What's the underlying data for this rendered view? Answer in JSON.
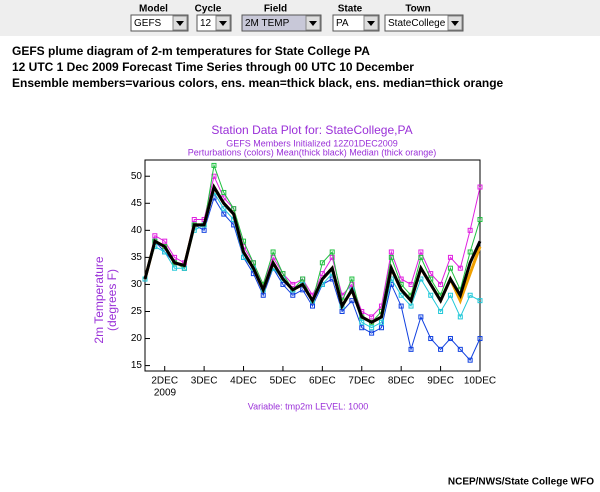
{
  "controls": [
    {
      "label": "Model",
      "value": "GEFS"
    },
    {
      "label": "Cycle",
      "value": "12"
    },
    {
      "label": "Field",
      "value": "2M TEMP"
    },
    {
      "label": "State",
      "value": "PA"
    },
    {
      "label": "Town",
      "value": "StateCollege"
    }
  ],
  "heading": [
    "GEFS plume diagram of 2-m temperatures for State College PA",
    "12 UTC 1 Dec 2009 Forecast Time Series through 00 UTC 10 December",
    "Ensemble members=various colors, ens. mean=thick black, ens. median=thick orange"
  ],
  "chart_data": {
    "type": "line",
    "title": "Station Data Plot for: StateCollege,PA",
    "subtitle": [
      "GEFS Members Initialized 12Z01DEC2009",
      "Perturbations (colors) Mean(thick black) Median (thick orange)"
    ],
    "y_label": [
      "2m Temperature",
      "(degrees F)"
    ],
    "x_year": "2009",
    "note": "Variable: tmp2m LEVEL: 1000",
    "x": [
      1.5,
      1.75,
      2,
      2.25,
      2.5,
      2.75,
      3,
      3.25,
      3.5,
      3.75,
      4,
      4.25,
      4.5,
      4.75,
      5,
      5.25,
      5.5,
      5.75,
      6,
      6.25,
      6.5,
      6.75,
      7,
      7.25,
      7.5,
      7.75,
      8,
      8.25,
      8.5,
      8.75,
      9,
      9.25,
      9.5,
      9.75,
      10
    ],
    "xlim": [
      1.5,
      10
    ],
    "xticks": [
      {
        "value": 2,
        "label": "2DEC"
      },
      {
        "value": 3,
        "label": "3DEC"
      },
      {
        "value": 4,
        "label": "4DEC"
      },
      {
        "value": 5,
        "label": "5DEC"
      },
      {
        "value": 6,
        "label": "6DEC"
      },
      {
        "value": 7,
        "label": "7DEC"
      },
      {
        "value": 8,
        "label": "8DEC"
      },
      {
        "value": 9,
        "label": "9DEC"
      },
      {
        "value": 10,
        "label": "10DEC"
      }
    ],
    "ylim": [
      14,
      53
    ],
    "yticks": [
      15,
      20,
      25,
      30,
      35,
      40,
      45,
      50
    ],
    "series": [
      {
        "color": "#e020e0",
        "width": 1,
        "values": [
          31,
          39,
          38,
          35,
          34,
          42,
          42,
          50,
          46,
          44,
          37,
          34,
          30,
          35,
          32,
          30,
          31,
          28,
          32,
          35,
          28,
          30,
          25,
          24,
          26,
          36,
          31,
          30,
          36,
          32,
          30,
          35,
          33,
          40,
          48
        ]
      },
      {
        "color": "#1040e0",
        "width": 1,
        "values": [
          31,
          38,
          36,
          34,
          33,
          41,
          40,
          46,
          43,
          41,
          35,
          32,
          28,
          33,
          30,
          28,
          29,
          26,
          30,
          31,
          25,
          27,
          22,
          21,
          22,
          30,
          26,
          18,
          24,
          20,
          18,
          20,
          18,
          16,
          20
        ]
      },
      {
        "color": "#20c040",
        "width": 1,
        "values": [
          31,
          38,
          37,
          34,
          33,
          41,
          41,
          52,
          47,
          44,
          38,
          34,
          30,
          36,
          32,
          29,
          31,
          27,
          34,
          36,
          27,
          31,
          24,
          23,
          25,
          35,
          30,
          28,
          35,
          31,
          28,
          33,
          29,
          36,
          42
        ]
      },
      {
        "color": "#20c8d8",
        "width": 1,
        "values": [
          31,
          37,
          36,
          33,
          33,
          40,
          41,
          47,
          44,
          42,
          35,
          33,
          29,
          33,
          31,
          29,
          30,
          27,
          30,
          32,
          26,
          29,
          23,
          22,
          23,
          31,
          28,
          26,
          31,
          28,
          25,
          28,
          24,
          28,
          27
        ]
      },
      {
        "color": "#f0a000",
        "width": 3,
        "values": [
          31,
          38,
          37,
          34,
          33.5,
          41,
          41,
          48,
          45,
          43,
          36,
          33,
          29,
          34,
          31,
          29,
          30,
          27,
          31,
          33,
          26,
          29,
          24,
          23,
          24,
          33,
          29,
          27,
          33,
          30,
          27,
          31,
          27,
          32,
          37
        ]
      },
      {
        "color": "#000000",
        "width": 3,
        "values": [
          31,
          38,
          37,
          34,
          33.5,
          41,
          41,
          48,
          45,
          43,
          36,
          33,
          29,
          34,
          31,
          29,
          30,
          27,
          31,
          33,
          26,
          29,
          24,
          23,
          24,
          33,
          29,
          27,
          33,
          30,
          27,
          31,
          28,
          34,
          38
        ]
      }
    ]
  },
  "footer": "NCEP/NWS/State College WFO"
}
